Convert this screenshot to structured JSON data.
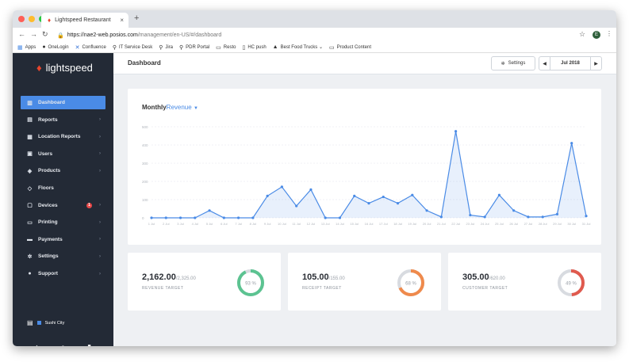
{
  "browser": {
    "tab_title": "Lightspeed Restaurant",
    "tab_close": "×",
    "new_tab": "+",
    "url_host": "https://nae2-web.posios.com",
    "url_path": "/management/en-US/#/dashboard",
    "profile_initial": "E",
    "bookmarks": [
      "Apps",
      "OneLogin",
      "Confluence",
      "IT Service Desk",
      "Jira",
      "PDR Portal",
      "Resto",
      "HC push",
      "Best Food Trucks ⌄",
      "Product Content"
    ]
  },
  "sidebar": {
    "brand": "lightspeed",
    "items": [
      {
        "label": "Dashboard",
        "icon": "dashboard-icon",
        "glyph": "▥",
        "active": true
      },
      {
        "label": "Reports",
        "icon": "reports-icon",
        "glyph": "▤"
      },
      {
        "label": "Location Reports",
        "icon": "location-reports-icon",
        "glyph": "▦"
      },
      {
        "label": "Users",
        "icon": "users-icon",
        "glyph": "▣"
      },
      {
        "label": "Products",
        "icon": "products-icon",
        "glyph": "◈"
      },
      {
        "label": "Floors",
        "icon": "floors-icon",
        "glyph": "◇"
      },
      {
        "label": "Devices",
        "icon": "devices-icon",
        "glyph": "▢",
        "badge": "1"
      },
      {
        "label": "Printing",
        "icon": "printer-icon",
        "glyph": "▭"
      },
      {
        "label": "Payments",
        "icon": "payments-icon",
        "glyph": "▬"
      },
      {
        "label": "Settings",
        "icon": "gear-icon",
        "glyph": "✲"
      },
      {
        "label": "Support",
        "icon": "support-icon",
        "glyph": "●"
      }
    ],
    "store_name": "Sushi City"
  },
  "header": {
    "title": "Dashboard",
    "settings_label": "Settings",
    "period": "Jul 2018"
  },
  "chart_card": {
    "title_prefix": "Monthly",
    "metric": "Revenue"
  },
  "chart_data": {
    "type": "area",
    "categories": [
      "1 Jul",
      "2 Jul",
      "3 Jul",
      "4 Jul",
      "5 Jul",
      "6 Jul",
      "7 Jul",
      "8 Jul",
      "9 Jul",
      "10 Jul",
      "11 Jul",
      "12 Jul",
      "13 Jul",
      "14 Jul",
      "15 Jul",
      "16 Jul",
      "17 Jul",
      "18 Jul",
      "19 Jul",
      "20 Jul",
      "21 Jul",
      "22 Jul",
      "23 Jul",
      "24 Jul",
      "25 Jul",
      "26 Jul",
      "27 Jul",
      "28 Jul",
      "29 Jul",
      "30 Jul",
      "31 Jul"
    ],
    "values": [
      0,
      0,
      0,
      0,
      40,
      0,
      0,
      0,
      120,
      170,
      65,
      155,
      0,
      0,
      120,
      80,
      115,
      80,
      125,
      40,
      5,
      475,
      15,
      5,
      125,
      40,
      5,
      5,
      20,
      410,
      10
    ],
    "ylim": [
      0,
      500
    ],
    "yticks": [
      "500",
      "400",
      "300",
      "200",
      "100",
      "0"
    ],
    "grid": true,
    "color": "#4a8be6"
  },
  "kpis": [
    {
      "value": "2,162.00",
      "target": "/2,325.00",
      "label": "REVENUE TARGET",
      "percent": 93,
      "percent_label": "93 %",
      "color": "#5cc391"
    },
    {
      "value": "105.00",
      "target": "/155.00",
      "label": "RECEIPT TARGET",
      "percent": 68,
      "percent_label": "68 %",
      "color": "#ef8a4c"
    },
    {
      "value": "305.00",
      "target": "/620.00",
      "label": "CUSTOMER TARGET",
      "percent": 49,
      "percent_label": "49 %",
      "color": "#e05a4e"
    }
  ]
}
